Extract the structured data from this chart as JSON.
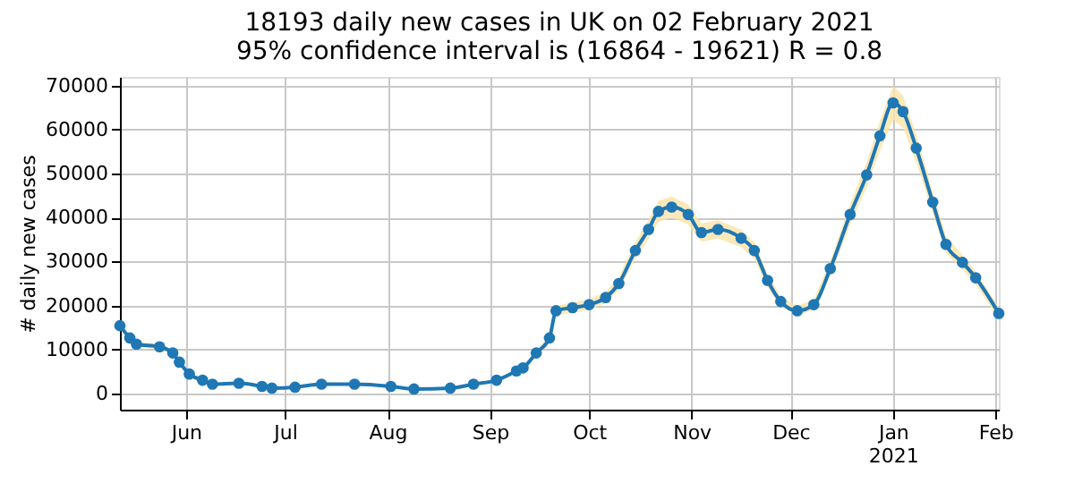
{
  "chart_data": {
    "type": "line",
    "title": "18193 daily new cases in UK on 02 February 2021",
    "subtitle": "95% confidence interval is (16864 - 19621) R = 0.8",
    "ylabel": "# daily new cases",
    "x": [
      "2020-05-12",
      "2020-05-15",
      "2020-05-17",
      "2020-05-24",
      "2020-05-28",
      "2020-05-30",
      "2020-06-02",
      "2020-06-06",
      "2020-06-09",
      "2020-06-17",
      "2020-06-24",
      "2020-06-27",
      "2020-07-04",
      "2020-07-12",
      "2020-07-22",
      "2020-08-02",
      "2020-08-09",
      "2020-08-20",
      "2020-08-27",
      "2020-09-03",
      "2020-09-09",
      "2020-09-11",
      "2020-09-15",
      "2020-09-19",
      "2020-09-21",
      "2020-09-26",
      "2020-10-01",
      "2020-10-06",
      "2020-10-10",
      "2020-10-15",
      "2020-10-19",
      "2020-10-22",
      "2020-10-26",
      "2020-10-31",
      "2020-11-04",
      "2020-11-09",
      "2020-11-16",
      "2020-11-20",
      "2020-11-24",
      "2020-11-28",
      "2020-12-03",
      "2020-12-08",
      "2020-12-13",
      "2020-12-19",
      "2020-12-24",
      "2020-12-28",
      "2021-01-01",
      "2021-01-04",
      "2021-01-08",
      "2021-01-13",
      "2021-01-17",
      "2021-01-22",
      "2021-01-26",
      "2021-02-02"
    ],
    "series": [
      {
        "color": "#1f77b4",
        "values": [
          15400,
          12600,
          11200,
          10600,
          9200,
          7100,
          4400,
          3000,
          2100,
          2300,
          1600,
          1200,
          1400,
          2100,
          2100,
          1600,
          1000,
          1200,
          2100,
          3000,
          5100,
          5800,
          9200,
          12600,
          18800,
          19500,
          20200,
          21800,
          25000,
          32500,
          37300,
          41400,
          42400,
          40700,
          36600,
          37300,
          35300,
          32500,
          25700,
          20900,
          18800,
          20200,
          28400,
          40700,
          49700,
          58600,
          66100,
          64100,
          55800,
          43500,
          33900,
          29800,
          26300,
          18193
        ],
        "lower": [
          14600,
          12000,
          10600,
          10000,
          8700,
          6700,
          4100,
          2800,
          1900,
          2100,
          1500,
          1050,
          1250,
          1900,
          1900,
          1500,
          900,
          1050,
          1900,
          2750,
          4800,
          5400,
          8700,
          11900,
          17700,
          18300,
          19000,
          20500,
          23500,
          30600,
          35100,
          39000,
          40000,
          38400,
          34500,
          35200,
          33300,
          30600,
          24200,
          19700,
          17700,
          19000,
          26700,
          38300,
          46800,
          55200,
          62300,
          60400,
          52600,
          41000,
          31900,
          28100,
          24800,
          16864
        ],
        "upper": [
          16200,
          13200,
          11800,
          11200,
          9700,
          7500,
          4700,
          3200,
          2300,
          2500,
          1800,
          1350,
          1550,
          2300,
          2300,
          1800,
          1100,
          1350,
          2300,
          3250,
          5400,
          6200,
          9700,
          13300,
          19900,
          20700,
          21400,
          23100,
          26500,
          34400,
          39500,
          43800,
          44800,
          43000,
          38700,
          39400,
          37300,
          34400,
          27200,
          22100,
          19900,
          21400,
          30100,
          43100,
          52600,
          62000,
          69900,
          67800,
          59000,
          46000,
          35900,
          31500,
          27800,
          19621
        ]
      }
    ],
    "xlim": [
      "2020-05-12",
      "2021-02-02"
    ],
    "xticks": [
      {
        "value": "2020-06-01",
        "label": "Jun"
      },
      {
        "value": "2020-07-01",
        "label": "Jul"
      },
      {
        "value": "2020-08-01",
        "label": "Aug"
      },
      {
        "value": "2020-09-01",
        "label": "Sep"
      },
      {
        "value": "2020-10-01",
        "label": "Oct"
      },
      {
        "value": "2020-11-01",
        "label": "Nov"
      },
      {
        "value": "2020-12-01",
        "label": "Dec"
      },
      {
        "value": "2021-01-01",
        "label": "Jan\n2021"
      },
      {
        "value": "2021-02-01",
        "label": "Feb"
      }
    ],
    "ylim": [
      -3700,
      72000
    ],
    "yticks": [
      0,
      10000,
      20000,
      30000,
      40000,
      50000,
      60000,
      70000
    ],
    "grid": true,
    "marker": "circle",
    "line_style": "solid"
  }
}
